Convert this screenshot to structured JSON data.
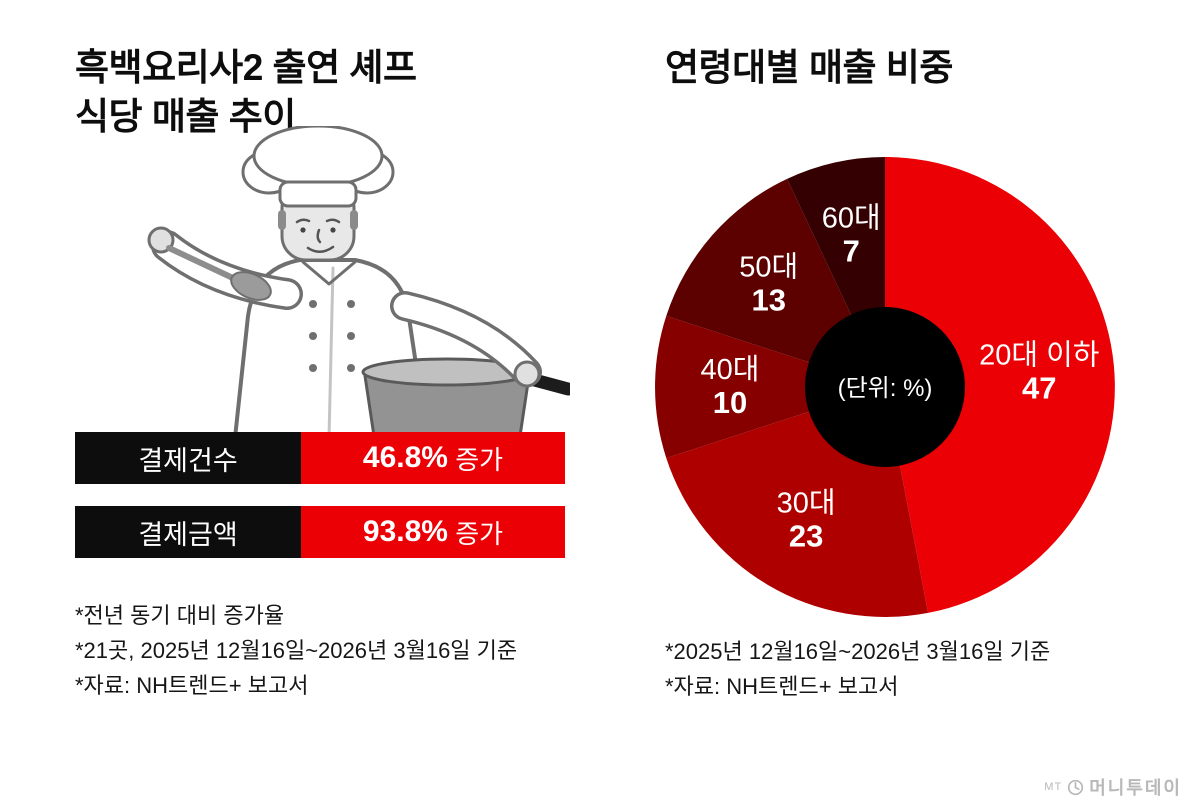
{
  "left": {
    "illustration": "chef-tasting-with-spoon-and-pot"
  },
  "chart_data": [
    {
      "type": "table",
      "title_lines": [
        "흑백요리사2 출연 셰프",
        "식당 매출 추이"
      ],
      "rows": [
        {
          "label": "결제건수",
          "value": "46.8%",
          "suffix": " 증가"
        },
        {
          "label": "결제금액",
          "value": "93.8%",
          "suffix": " 증가"
        }
      ],
      "notes": [
        "*전년 동기 대비 증가율",
        "*21곳, 2025년 12월16일~2026년 3월16일 기준",
        "*자료: NH트렌드+ 보고서"
      ],
      "colors": {
        "label_bg": "#0d0d0d",
        "value_bg": "#eb0005",
        "text": "#ffffff"
      }
    },
    {
      "type": "pie",
      "title": "연령대별 매출 비중",
      "unit_label": "(단위: %)",
      "donut": true,
      "start_angle_deg": 0,
      "direction": "clockwise",
      "slices": [
        {
          "label": "20대 이하",
          "value": 47,
          "color": "#eb0005"
        },
        {
          "label": "30대",
          "value": 23,
          "color": "#af0000"
        },
        {
          "label": "40대",
          "value": 10,
          "color": "#860000"
        },
        {
          "label": "50대",
          "value": 13,
          "color": "#5c0000"
        },
        {
          "label": "60대",
          "value": 7,
          "color": "#350002"
        }
      ],
      "hole_color": "#000000",
      "notes": [
        "*2025년 12월16일~2026년 3월16일 기준",
        "*자료: NH트렌드+ 보고서"
      ]
    }
  ],
  "logo": {
    "prefix": "MT",
    "name": "머니투데이"
  }
}
